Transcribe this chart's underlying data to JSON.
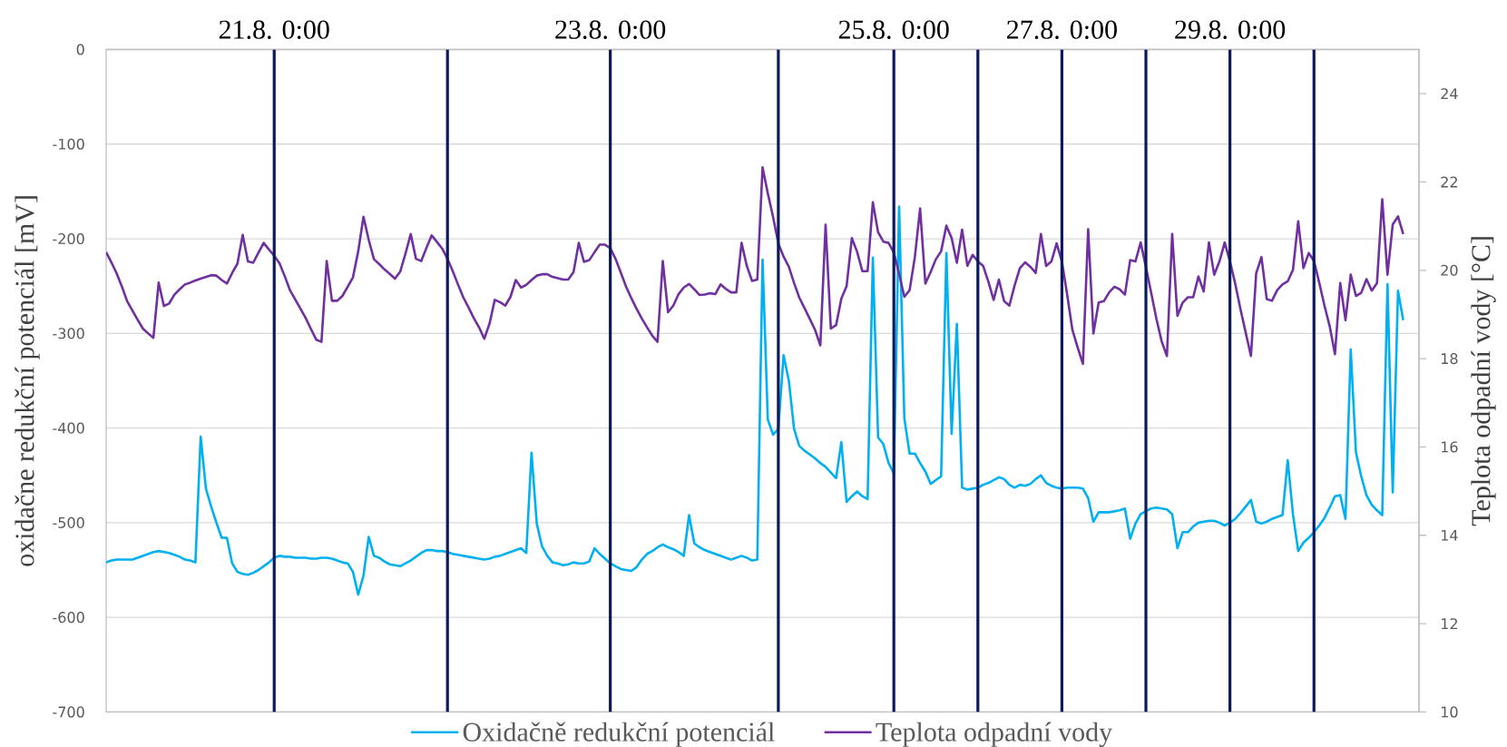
{
  "chart_data": {
    "type": "line",
    "ylabel": "oxidačne redukční potenciál [mV]",
    "y2label": "Teplota odpadní vody [°C]",
    "categories": [
      null,
      null,
      null,
      null,
      null,
      null,
      null,
      null,
      null,
      null,
      null,
      null,
      null,
      null,
      null,
      null,
      null,
      null,
      null,
      null,
      null,
      null,
      null,
      null,
      null,
      null,
      null,
      null,
      null,
      null,
      null,
      null,
      "21.8. 0:00",
      null,
      null,
      null,
      null,
      null,
      null,
      null,
      null,
      null,
      null,
      null,
      null,
      null,
      null,
      null,
      null,
      null,
      null,
      null,
      null,
      null,
      null,
      null,
      null,
      null,
      null,
      null,
      null,
      null,
      null,
      null,
      null,
      null,
      null,
      null,
      null,
      null,
      null,
      null,
      null,
      null,
      null,
      null,
      null,
      null,
      null,
      null,
      null,
      null,
      null,
      null,
      null,
      null,
      null,
      null,
      null,
      null,
      null,
      null,
      null,
      null,
      null,
      null,
      "23.8. 0:00",
      null,
      null,
      null,
      null,
      null,
      null,
      null,
      null,
      null,
      null,
      null,
      null,
      null,
      null,
      null,
      null,
      null,
      null,
      null,
      null,
      null,
      null,
      null,
      null,
      null,
      null,
      null,
      null,
      null,
      null,
      null,
      null,
      null,
      null,
      null,
      null,
      null,
      null,
      null,
      null,
      null,
      null,
      null,
      null,
      null,
      null,
      null,
      null,
      null,
      null,
      null,
      null,
      null,
      "25.8. 0:00",
      null,
      null,
      null,
      null,
      null,
      null,
      null,
      null,
      null,
      null,
      null,
      null,
      null,
      null,
      null,
      null,
      null,
      null,
      null,
      null,
      null,
      null,
      null,
      null,
      null,
      null,
      null,
      null,
      null,
      null,
      null,
      "27.8. 0:00",
      null,
      null,
      null,
      null,
      null,
      null,
      null,
      null,
      null,
      null,
      null,
      null,
      null,
      null,
      null,
      null,
      null,
      null,
      null,
      null,
      null,
      null,
      null,
      null,
      null,
      null,
      null,
      null,
      null,
      null,
      null,
      "29.8. 0:00",
      null,
      null,
      null,
      null,
      null,
      null,
      null,
      null,
      null,
      null,
      null,
      null,
      null,
      null,
      null,
      null,
      null,
      null,
      null,
      null,
      null,
      null,
      null,
      null,
      null,
      null,
      null,
      null,
      null,
      null,
      null,
      null,
      null,
      null,
      null,
      null
    ],
    "ylim": [
      -700,
      0
    ],
    "yticks": [
      -700,
      -600,
      -500,
      -400,
      -300,
      -200,
      -100,
      0
    ],
    "y2lim": [
      10,
      25
    ],
    "y2ticks": [
      10,
      12,
      14,
      16,
      18,
      20,
      22,
      24
    ],
    "grid": "y",
    "legend": "bottom",
    "marker": "none",
    "series": [
      {
        "name": "Oxidačně redukční potenciál",
        "color": "#00b0f0",
        "values": [
          -542,
          -540,
          -539,
          -539,
          -539,
          -539,
          -537,
          -535,
          -533,
          -531,
          -530,
          -531,
          -532,
          -534,
          -536,
          -539,
          -540,
          -542,
          -409,
          -464,
          -483,
          -500,
          -516,
          -516,
          -543,
          -552,
          -554,
          -555,
          -553,
          -550,
          -546,
          -542,
          -537,
          -535,
          -536,
          -536,
          -537,
          -537,
          -537,
          -538,
          -538,
          -537,
          -537,
          -538,
          -540,
          -542,
          -543,
          -552,
          -576,
          -556,
          -515,
          -535,
          -537,
          -541,
          -544,
          -545,
          -546,
          -543,
          -540,
          -536,
          -532,
          -529,
          -529,
          -530,
          -530,
          -531,
          -533,
          -534,
          -535,
          -536,
          -537,
          -538,
          -539,
          -538,
          -536,
          -535,
          -533,
          -531,
          -529,
          -527,
          -532,
          -426,
          -501,
          -525,
          -535,
          -542,
          -543,
          -545,
          -544,
          -542,
          -543,
          -543,
          -541,
          -527,
          -533,
          -538,
          -543,
          -546,
          -549,
          -550,
          -551,
          -547,
          -539,
          -533,
          -530,
          -526,
          -523,
          -526,
          -528,
          -531,
          -535,
          -492,
          -522,
          -526,
          -529,
          -531,
          -533,
          -535,
          -537,
          -539,
          -537,
          -535,
          -537,
          -540,
          -539,
          -222,
          -391,
          -407,
          -401,
          -323,
          -350,
          -401,
          -419,
          -424,
          -428,
          -432,
          -437,
          -441,
          -447,
          -453,
          -415,
          -478,
          -472,
          -467,
          -472,
          -475,
          -220,
          -410,
          -417,
          -437,
          -448,
          -166,
          -390,
          -427,
          -427,
          -437,
          -446,
          -459,
          -455,
          -451,
          -215,
          -406,
          -290,
          -463,
          -465,
          -464,
          -463,
          -460,
          -458,
          -455,
          -452,
          -454,
          -460,
          -463,
          -460,
          -461,
          -459,
          -454,
          -450,
          -458,
          -461,
          -463,
          -464,
          -463,
          -463,
          -463,
          -464,
          -474,
          -499,
          -489,
          -489,
          -489,
          -488,
          -487,
          -485,
          -517,
          -501,
          -491,
          -488,
          -485,
          -484,
          -485,
          -486,
          -491,
          -527,
          -510,
          -510,
          -504,
          -500,
          -499,
          -498,
          -498,
          -500,
          -503,
          -500,
          -496,
          -490,
          -483,
          -476,
          -499,
          -501,
          -499,
          -496,
          -494,
          -492,
          -434,
          -491,
          -530,
          -521,
          -516,
          -510,
          -503,
          -495,
          -484,
          -472,
          -471,
          -496,
          -317,
          -426,
          -451,
          -471,
          -481,
          -487,
          -492,
          -248,
          -468,
          -255,
          -286,
          null,
          null,
          null
        ]
      },
      {
        "name": "Teplota odpadní vody",
        "color": "#7030a0",
        "axis": "y2",
        "values": [
          20.41,
          20.18,
          19.93,
          19.63,
          19.3,
          19.09,
          18.88,
          18.68,
          18.57,
          18.47,
          19.72,
          19.19,
          19.25,
          19.45,
          19.57,
          19.68,
          19.72,
          19.77,
          19.81,
          19.85,
          19.89,
          19.88,
          19.78,
          19.7,
          19.94,
          20.15,
          20.8,
          20.2,
          20.17,
          20.4,
          20.62,
          20.47,
          20.33,
          20.16,
          19.87,
          19.55,
          19.34,
          19.13,
          18.92,
          18.67,
          18.43,
          18.38,
          20.21,
          19.31,
          19.31,
          19.42,
          19.63,
          19.84,
          20.43,
          21.21,
          20.69,
          20.25,
          20.14,
          20.02,
          19.92,
          19.81,
          19.97,
          20.38,
          20.82,
          20.26,
          20.21,
          20.51,
          20.79,
          20.64,
          20.49,
          20.26,
          19.98,
          19.68,
          19.39,
          19.16,
          18.92,
          18.71,
          18.45,
          18.79,
          19.33,
          19.28,
          19.2,
          19.4,
          19.78,
          19.61,
          19.67,
          19.78,
          19.88,
          19.91,
          19.91,
          19.85,
          19.82,
          19.79,
          19.79,
          19.96,
          20.62,
          20.19,
          20.23,
          20.41,
          20.58,
          20.58,
          20.5,
          20.26,
          19.95,
          19.63,
          19.37,
          19.13,
          18.91,
          18.71,
          18.52,
          18.38,
          20.21,
          19.05,
          19.2,
          19.46,
          19.61,
          19.69,
          19.57,
          19.44,
          19.45,
          19.48,
          19.46,
          19.68,
          19.58,
          19.5,
          19.5,
          20.62,
          20.1,
          19.76,
          19.79,
          22.33,
          21.74,
          21.21,
          20.61,
          20.31,
          20.08,
          19.71,
          19.38,
          19.14,
          18.9,
          18.65,
          18.3,
          21.03,
          18.68,
          18.76,
          19.36,
          19.64,
          20.73,
          20.42,
          19.98,
          19.98,
          21.54,
          20.86,
          20.65,
          20.62,
          20.4,
          19.92,
          19.4,
          19.55,
          20.3,
          21.4,
          19.7,
          19.96,
          20.25,
          20.43,
          21.01,
          20.73,
          20.17,
          20.92,
          20.1,
          20.35,
          20.2,
          20.1,
          19.74,
          19.33,
          19.79,
          19.3,
          19.2,
          19.66,
          20.05,
          20.18,
          20.08,
          19.94,
          20.82,
          20.1,
          20.2,
          20.61,
          20.2,
          19.45,
          18.65,
          18.25,
          17.88,
          20.93,
          18.57,
          19.27,
          19.3,
          19.5,
          19.63,
          19.57,
          19.45,
          20.23,
          20.2,
          20.63,
          20.07,
          19.49,
          18.9,
          18.39,
          18.06,
          20.82,
          18.97,
          19.27,
          19.39,
          19.39,
          19.86,
          19.52,
          20.63,
          19.9,
          20.2,
          20.63,
          20.2,
          19.7,
          19.12,
          18.59,
          18.06,
          19.93,
          20.3,
          19.35,
          19.31,
          19.55,
          19.68,
          19.75,
          20.01,
          21.11,
          20.05,
          20.39,
          20.21,
          19.72,
          19.2,
          18.73,
          18.1,
          19.71,
          18.87,
          19.9,
          19.42,
          19.49,
          19.8,
          19.54,
          19.71,
          21.61,
          19.9,
          21.04,
          21.22,
          20.82,
          null,
          null,
          null
        ]
      }
    ]
  }
}
